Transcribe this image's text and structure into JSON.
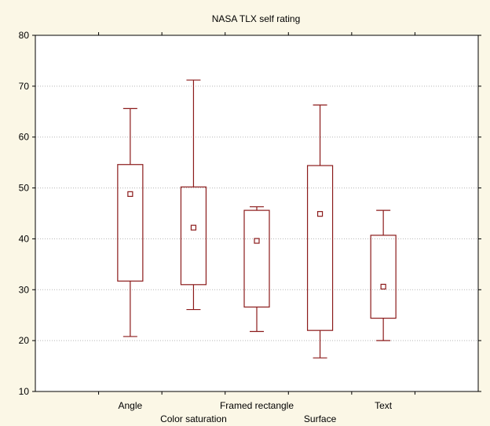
{
  "chart_data": {
    "type": "boxplot",
    "title": "NASA TLX self rating",
    "xlabel": "",
    "ylabel": "",
    "ylim": [
      10,
      80
    ],
    "yticks": [
      10,
      20,
      30,
      40,
      50,
      60,
      70,
      80
    ],
    "grid": "horizontal-dotted",
    "categories": [
      "Angle",
      "Color saturation",
      "Framed rectangle",
      "Surface",
      "Text"
    ],
    "label_row": [
      0,
      1,
      0,
      1,
      0
    ],
    "boxes": [
      {
        "whisker_low": 20.8,
        "q1": 31.7,
        "median": 48.8,
        "q3": 54.6,
        "whisker_high": 65.6
      },
      {
        "whisker_low": 26.1,
        "q1": 31.0,
        "median": 42.2,
        "q3": 50.2,
        "whisker_high": 71.2
      },
      {
        "whisker_low": 21.8,
        "q1": 26.6,
        "median": 39.6,
        "q3": 45.6,
        "whisker_high": 46.3
      },
      {
        "whisker_low": 16.6,
        "q1": 22.0,
        "median": 44.9,
        "q3": 54.4,
        "whisker_high": 66.3
      },
      {
        "whisker_low": 20.0,
        "q1": 24.4,
        "median": 30.6,
        "q3": 40.7,
        "whisker_high": 45.6
      }
    ],
    "colors": {
      "mark": "#8b1a1a",
      "grid": "#b5b5b5",
      "axis": "#000000",
      "background": "#fbf7e6"
    }
  }
}
